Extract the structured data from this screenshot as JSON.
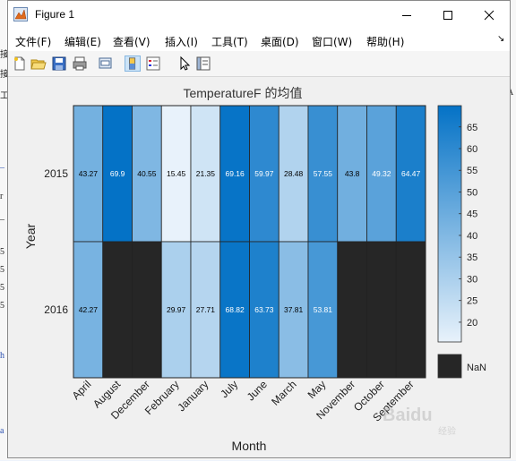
{
  "window": {
    "title": "Figure 1",
    "controls": [
      "minimize",
      "maximize",
      "close"
    ]
  },
  "menu": [
    "文件(F)",
    "编辑(E)",
    "查看(V)",
    "插入(I)",
    "工具(T)",
    "桌面(D)",
    "窗口(W)",
    "帮助(H)"
  ],
  "menu_extra_glyph": "↘",
  "toolbar": [
    "new-figure-icon",
    "open-file-icon",
    "save-icon",
    "print-icon",
    "link-icon",
    "colorbar-icon",
    "legend-icon",
    "pointer-icon",
    "property-inspector-icon"
  ],
  "background_fragments": {
    "visible_text": [
      "接",
      "接",
      "工",
      "A",
      "r",
      "5",
      "5",
      "5",
      "5",
      "h",
      "a"
    ],
    "blue_marks": [
      "_",
      "_",
      "_"
    ]
  },
  "chart_data": {
    "type": "heatmap",
    "title": "TemperatureF 的均值",
    "xlabel": "Month",
    "ylabel": "Year",
    "x_categories": [
      "April",
      "August",
      "December",
      "February",
      "January",
      "July",
      "June",
      "March",
      "May",
      "November",
      "October",
      "September"
    ],
    "y_categories": [
      "2015",
      "2016"
    ],
    "values": [
      [
        43.27,
        69.9,
        40.55,
        15.45,
        21.35,
        69.16,
        59.97,
        28.48,
        57.55,
        43.8,
        49.32,
        64.47
      ],
      [
        42.27,
        null,
        null,
        29.97,
        27.71,
        68.82,
        63.73,
        37.81,
        53.81,
        null,
        null,
        null
      ]
    ],
    "color_range": [
      15.45,
      69.9
    ],
    "colors": {
      "low": "#e8f2fb",
      "high": "#0472c6",
      "nan": "#262626"
    },
    "colorbar_ticks": [
      20,
      25,
      30,
      35,
      40,
      45,
      50,
      55,
      60,
      65
    ],
    "nan_label": "NaN",
    "cell_labels": [
      [
        "43.27",
        "69.9",
        "40.55",
        "15.45",
        "21.35",
        "69.16",
        "59.97",
        "28.48",
        "57.55",
        "43.8",
        "49.32",
        "64.47"
      ],
      [
        "42.27",
        "",
        "",
        "29.97",
        "27.71",
        "68.82",
        "63.73",
        "37.81",
        "53.81",
        "",
        "",
        ""
      ]
    ]
  },
  "watermark": {
    "text": "Baidu",
    "sub": "经验"
  }
}
